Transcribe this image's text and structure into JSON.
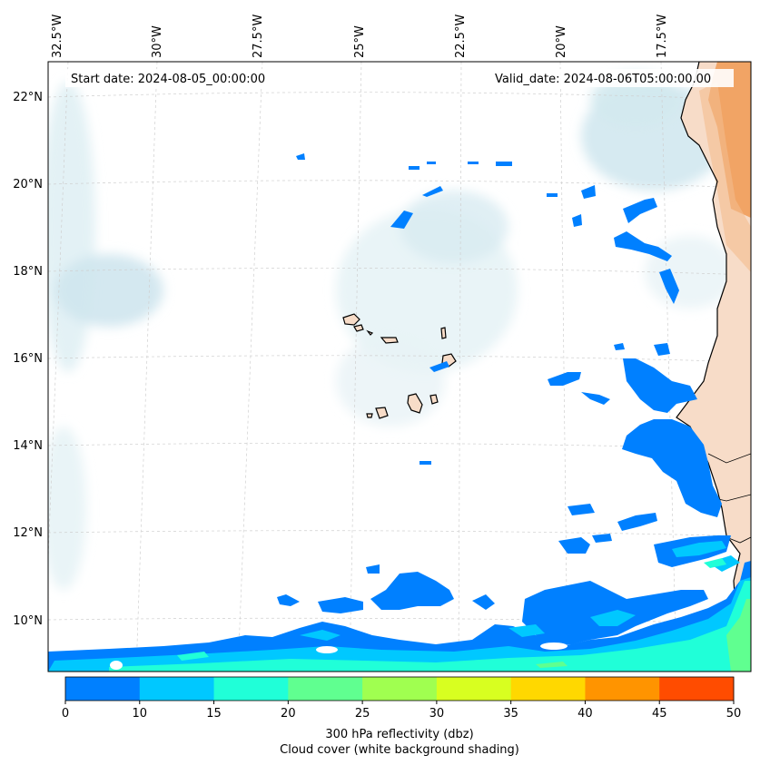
{
  "header": {
    "start_date": "Start date: 2024-08-05_00:00:00",
    "valid_date": "Valid_date: 2024-08-06T05:00:00.00"
  },
  "axes": {
    "lon_labels": [
      "32.5°W",
      "30°W",
      "27.5°W",
      "25°W",
      "22.5°W",
      "20°W",
      "17.5°W"
    ],
    "lat_labels": [
      "22°N",
      "20°N",
      "18°N",
      "16°N",
      "14°N",
      "12°N",
      "10°N"
    ],
    "gridlines": true
  },
  "colorbar": {
    "ticks": [
      "0",
      "10",
      "15",
      "20",
      "25",
      "30",
      "35",
      "40",
      "45",
      "50"
    ],
    "colors": [
      "#0080ff",
      "#00c8ff",
      "#20ffd8",
      "#60ff90",
      "#a0ff50",
      "#d8ff20",
      "#ffd800",
      "#ff9400",
      "#ff4c00"
    ],
    "label_line1": "300 hPa reflectivity (dbz)",
    "label_line2": "Cloud cover (white background shading)"
  },
  "colors": {
    "land": "#f7dcc8",
    "dust": "#f0a060",
    "cloud": "#d4eaf0",
    "coast": "#000000"
  }
}
